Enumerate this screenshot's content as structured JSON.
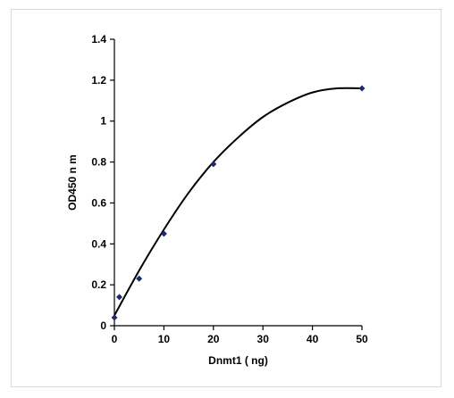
{
  "chart_data": {
    "type": "scatter",
    "title": "",
    "xlabel": "Dnmt1 ( ng)",
    "ylabel": "OD450 n m",
    "xlim": [
      0,
      50
    ],
    "ylim": [
      0,
      1.4
    ],
    "xticks": [
      "0",
      "10",
      "20",
      "30",
      "40",
      "50"
    ],
    "yticks": [
      "0",
      "0.2",
      "0.4",
      "0.6",
      "0.8",
      "1",
      "1.2",
      "1.4"
    ],
    "grid": false,
    "legend": "none",
    "marker_color": "#1f2a6b",
    "series": [
      {
        "x": [
          0,
          1,
          5,
          10,
          20,
          50
        ],
        "y": [
          0.04,
          0.14,
          0.23,
          0.45,
          0.79,
          1.16
        ]
      }
    ],
    "trendline": {
      "x": [
        0,
        5,
        10,
        15,
        20,
        25,
        30,
        35,
        40,
        45,
        50
      ],
      "y": [
        0.05,
        0.27,
        0.47,
        0.65,
        0.8,
        0.92,
        1.02,
        1.09,
        1.14,
        1.16,
        1.16
      ]
    }
  }
}
